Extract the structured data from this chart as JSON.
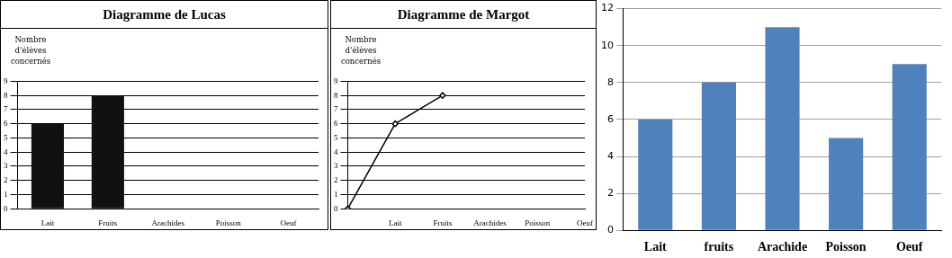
{
  "chart_data": [
    {
      "type": "bar",
      "title": "Diagramme de Lucas",
      "ylabel": "Nombre d'élèves concernés",
      "categories": [
        "Lait",
        "Fruits",
        "Arachides",
        "Poisson",
        "Oeuf"
      ],
      "values": [
        6,
        8,
        null,
        null,
        null
      ],
      "color": "#111111",
      "ylim": [
        0,
        9
      ],
      "yticks": [
        0,
        1,
        2,
        3,
        4,
        5,
        6,
        7,
        8,
        9
      ],
      "grid": "y",
      "legend": false
    },
    {
      "type": "line",
      "title": "Diagramme de Margot",
      "ylabel": "Nombre d'élèves concernés",
      "categories": [
        null,
        "Lait",
        "Fruits",
        "Arachides",
        "Poisson",
        "Oeuf"
      ],
      "values": [
        0,
        6,
        8,
        null,
        null,
        null
      ],
      "color": "#000000",
      "ylim": [
        0,
        9
      ],
      "yticks": [
        0,
        1,
        2,
        3,
        4,
        5,
        6,
        7,
        8,
        9
      ],
      "grid": "y",
      "legend": false,
      "marker": "diamond",
      "line_style": "solid"
    },
    {
      "type": "bar",
      "categories": [
        "Lait",
        "fruits",
        "Arachide",
        "Poisson",
        "Oeuf"
      ],
      "values": [
        6,
        8,
        11,
        5,
        9
      ],
      "color": "#4f81bd",
      "ylim": [
        0,
        12
      ],
      "yticks": [
        0,
        2,
        4,
        6,
        8,
        10,
        12
      ],
      "grid": "y",
      "legend": false
    }
  ]
}
